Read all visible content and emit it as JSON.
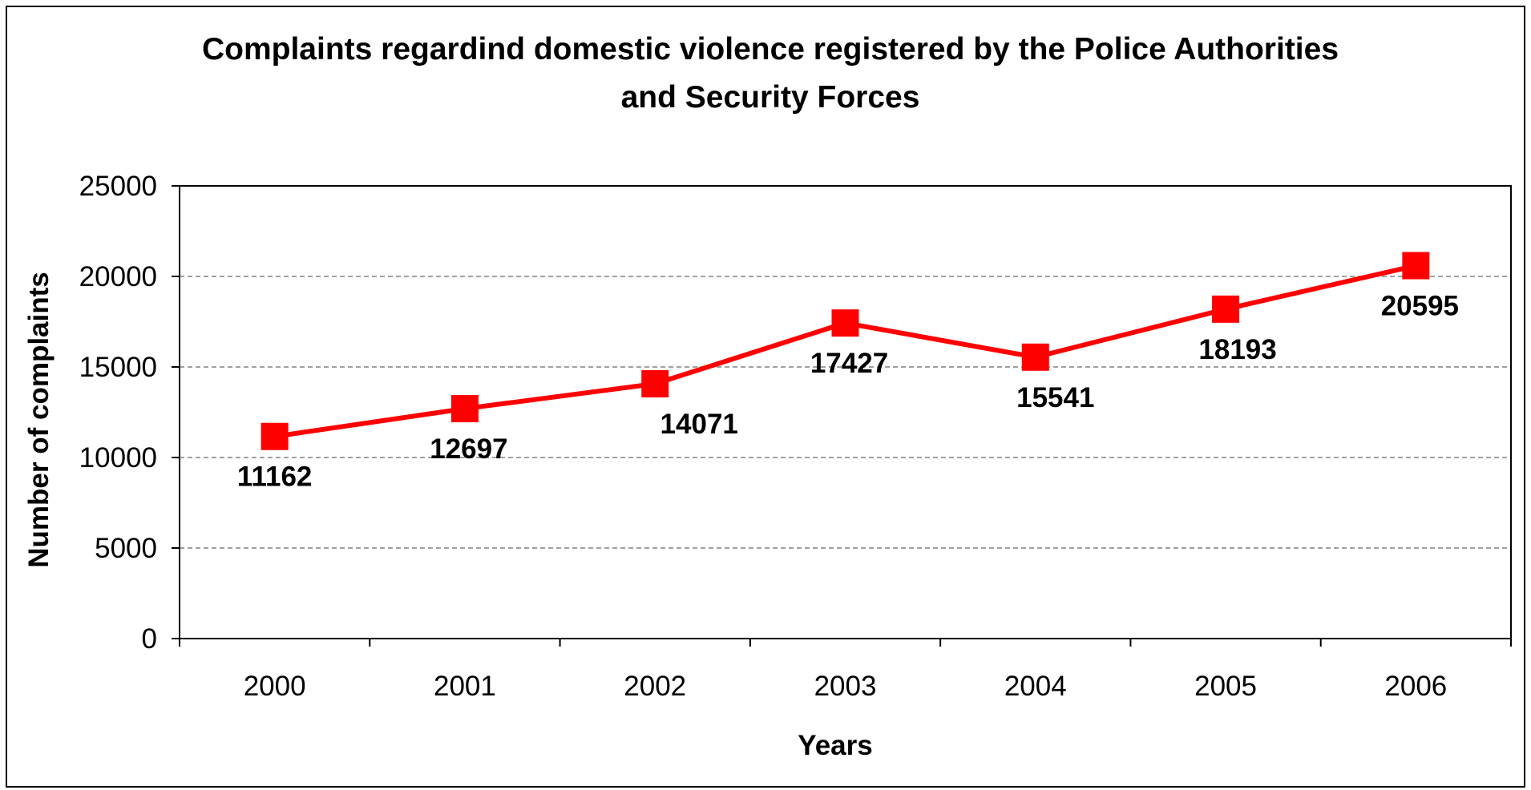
{
  "chart_data": {
    "type": "line",
    "title_line1": "Complaints regardind domestic violence registered by the Police Authorities",
    "title_line2": "and Security Forces",
    "xlabel": "Years",
    "ylabel": "Number of complaints",
    "categories": [
      "2000",
      "2001",
      "2002",
      "2003",
      "2004",
      "2005",
      "2006"
    ],
    "values": [
      11162,
      12697,
      14071,
      17427,
      15541,
      18193,
      20595
    ],
    "yticks": [
      "0",
      "5000",
      "10000",
      "15000",
      "20000",
      "25000"
    ],
    "ylim": [
      0,
      25000
    ],
    "grid": "horizontal dashed",
    "legend": "none",
    "series_color": "#ff0000",
    "marker": "square"
  }
}
